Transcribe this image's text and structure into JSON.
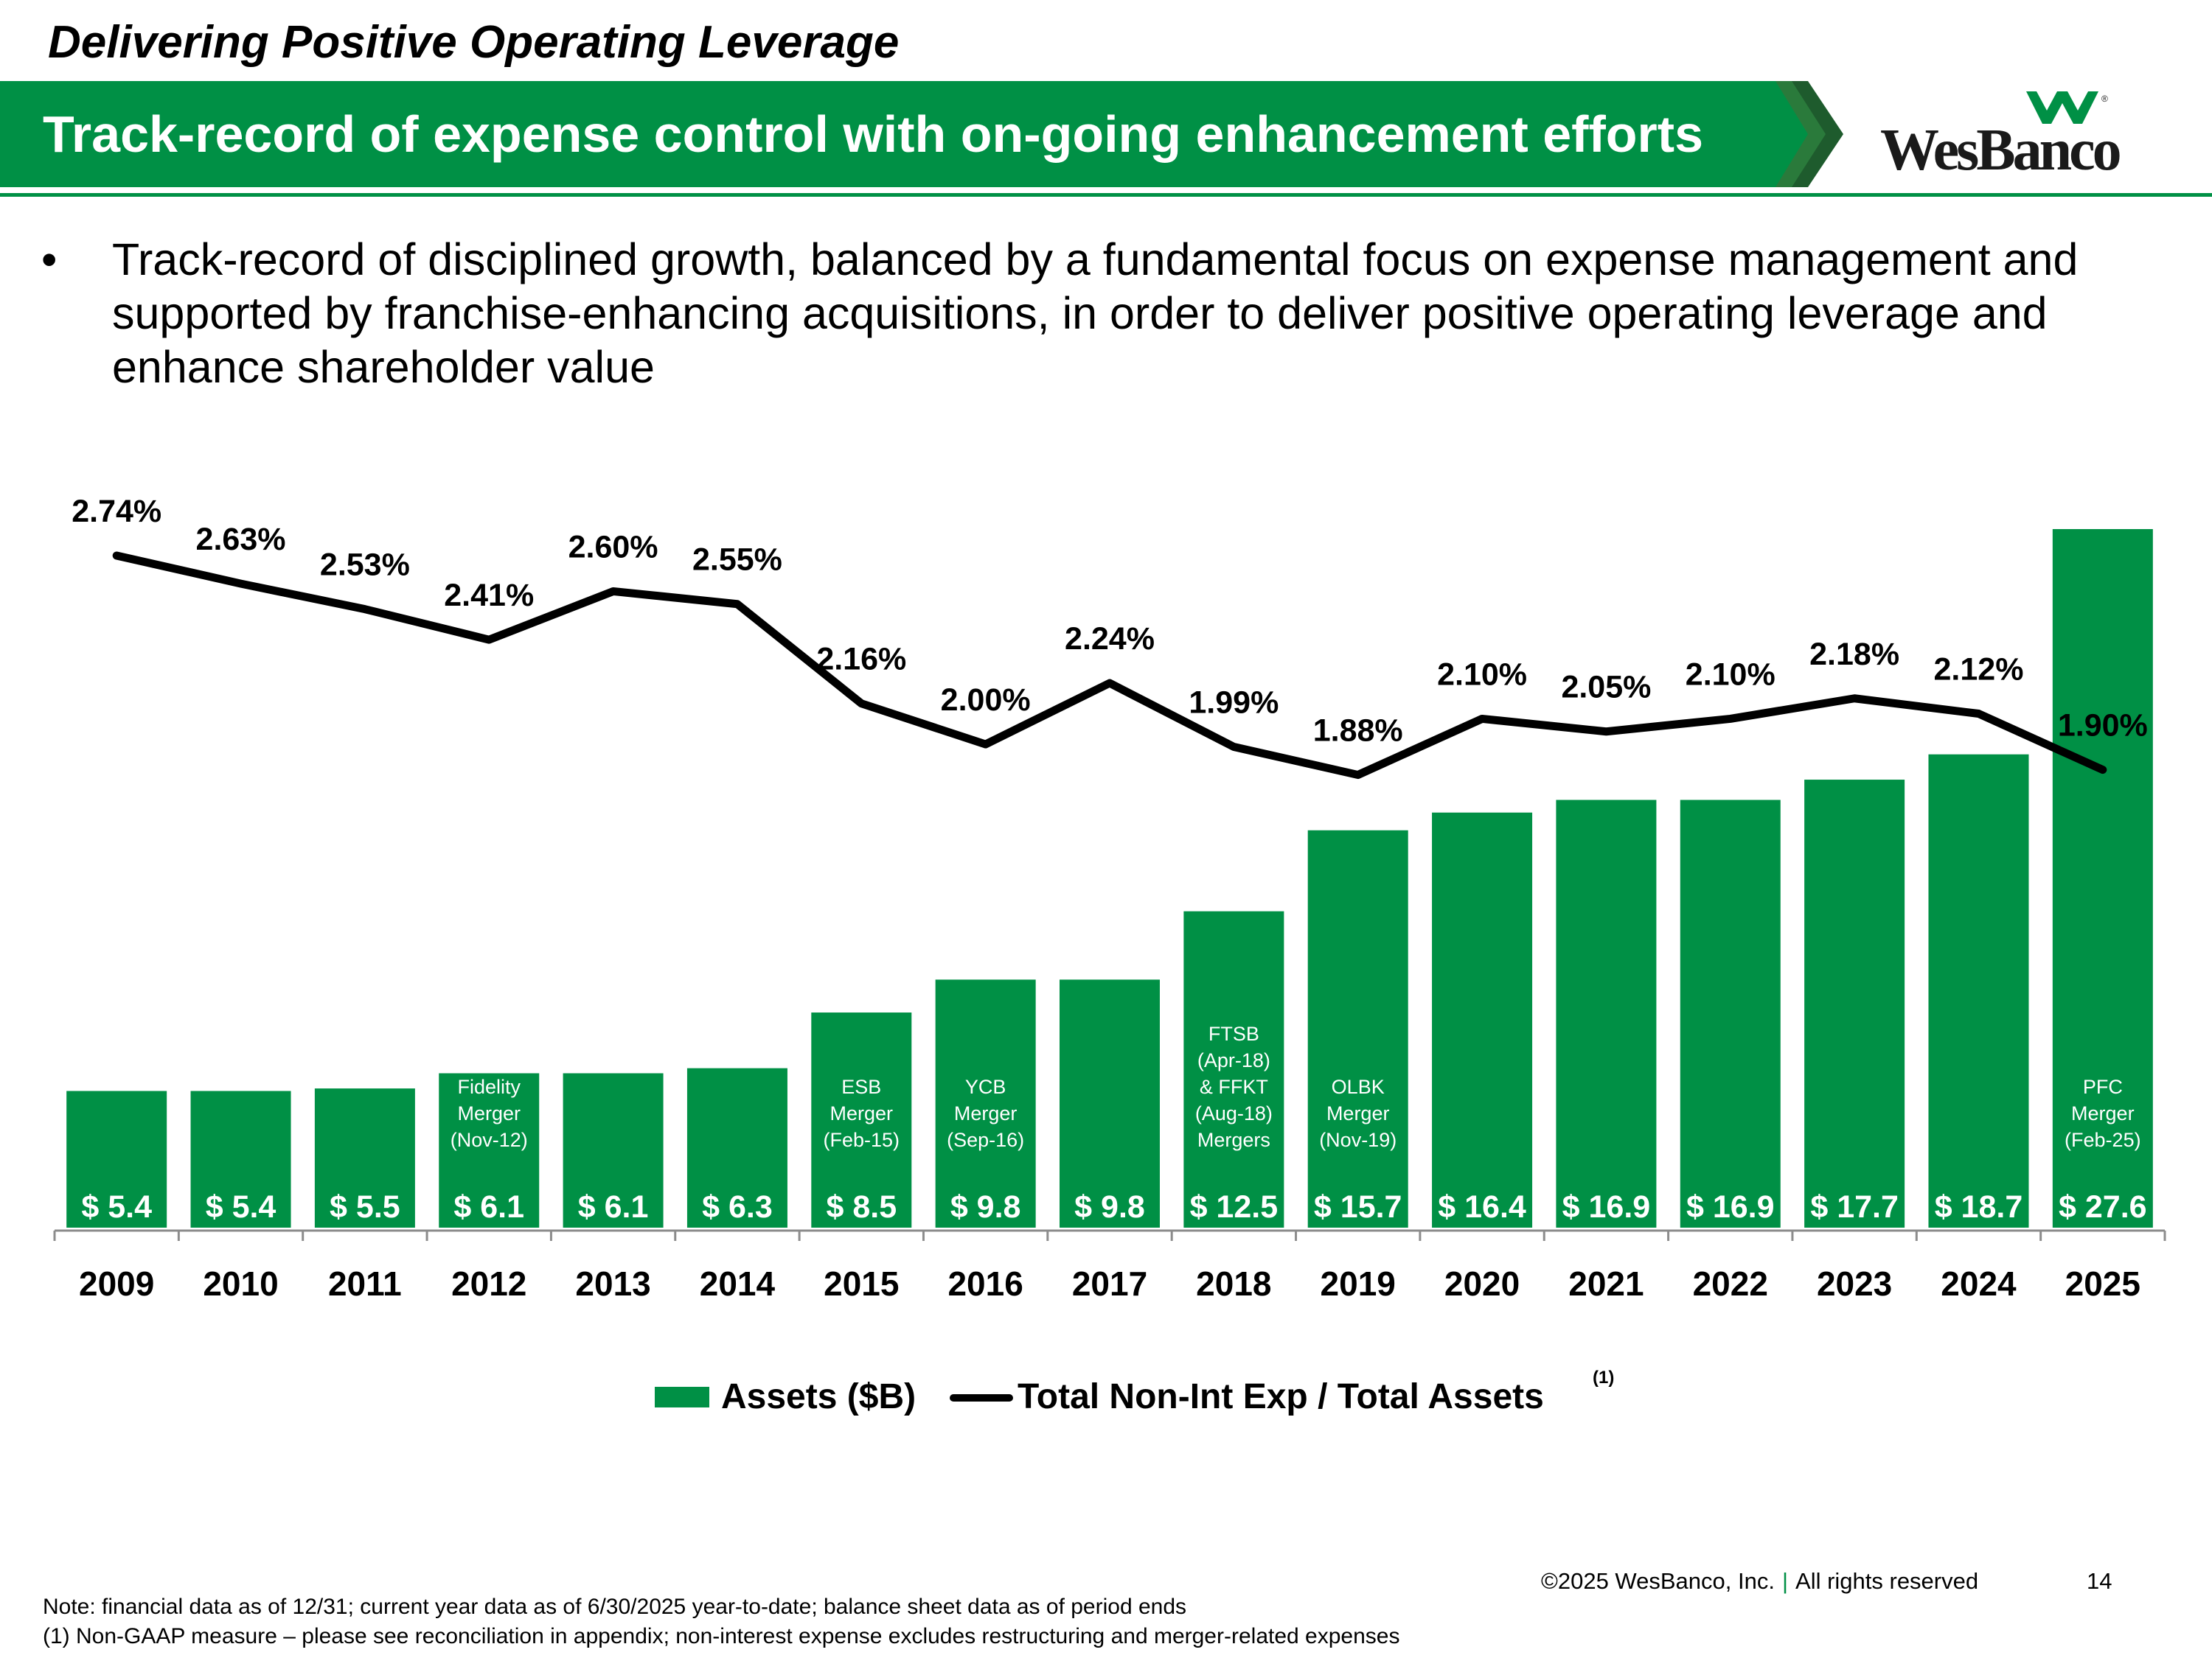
{
  "header": {
    "kicker": "Delivering Positive Operating Leverage",
    "title": "Track-record of expense control with on-going enhancement efforts",
    "logo_text": "WesBanco",
    "brand_color": "#009045"
  },
  "bullet": {
    "text": "Track-record of disciplined growth, balanced by a fundamental focus on expense management and supported by franchise-enhancing acquisitions, in order to deliver positive operating leverage and enhance shareholder value"
  },
  "chart_data": {
    "type": "bar",
    "categories": [
      "2009",
      "2010",
      "2011",
      "2012",
      "2013",
      "2014",
      "2015",
      "2016",
      "2017",
      "2018",
      "2019",
      "2020",
      "2021",
      "2022",
      "2023",
      "2024",
      "2025"
    ],
    "series": [
      {
        "name": "Assets ($B)",
        "type": "bar",
        "color": "#009045",
        "values": [
          5.4,
          5.4,
          5.5,
          6.1,
          6.1,
          6.3,
          8.5,
          9.8,
          9.8,
          12.5,
          15.7,
          16.4,
          16.9,
          16.9,
          17.7,
          18.7,
          27.6
        ],
        "labels": [
          "$ 5.4",
          "$ 5.4",
          "$ 5.5",
          "$ 6.1",
          "$ 6.1",
          "$ 6.3",
          "$ 8.5",
          "$ 9.8",
          "$ 9.8",
          "$ 12.5",
          "$ 15.7",
          "$ 16.4",
          "$ 16.9",
          "$ 16.9",
          "$ 17.7",
          "$ 18.7",
          "$ 27.6"
        ]
      },
      {
        "name": "Total Non-Int Exp / Total Assets",
        "type": "line",
        "color": "#000000",
        "values": [
          2.74,
          2.63,
          2.53,
          2.41,
          2.6,
          2.55,
          2.16,
          2.0,
          2.24,
          1.99,
          1.88,
          2.1,
          2.05,
          2.1,
          2.18,
          2.12,
          1.9
        ],
        "labels": [
          "2.74%",
          "2.63%",
          "2.53%",
          "2.41%",
          "2.60%",
          "2.55%",
          "2.16%",
          "2.00%",
          "2.24%",
          "1.99%",
          "1.88%",
          "2.10%",
          "2.05%",
          "2.10%",
          "2.18%",
          "2.12%",
          "1.90%"
        ]
      }
    ],
    "annotations": [
      {
        "category": "2012",
        "lines": [
          "Fidelity",
          "Merger",
          "(Nov-12)"
        ]
      },
      {
        "category": "2015",
        "lines": [
          "ESB",
          "Merger",
          "(Feb-15)"
        ]
      },
      {
        "category": "2016",
        "lines": [
          "YCB",
          "Merger",
          "(Sep-16)"
        ]
      },
      {
        "category": "2018",
        "lines": [
          "FTSB",
          "(Apr-18)",
          "& FFKT",
          "(Aug-18)",
          "Mergers"
        ]
      },
      {
        "category": "2019",
        "lines": [
          "OLBK",
          "Merger",
          "(Nov-19)"
        ]
      },
      {
        "category": "2025",
        "lines": [
          "PFC",
          "Merger",
          "(Feb-25)"
        ]
      }
    ],
    "legend": {
      "assets": "Assets ($B)",
      "ratio": "Total Non-Int Exp / Total Assets",
      "footnote_marker": "(1)",
      "placement": "bottom-center"
    }
  },
  "footer": {
    "copyright": "©2025 WesBanco, Inc.",
    "separator": "|",
    "rights": "All rights reserved",
    "page_number": "14",
    "note1": "Note: financial data as of 12/31; current year data as of 6/30/2025 year-to-date; balance sheet data as of period ends",
    "note2": "(1) Non-GAAP measure – please see reconciliation in appendix; non-interest expense excludes restructuring and merger-related expenses"
  }
}
